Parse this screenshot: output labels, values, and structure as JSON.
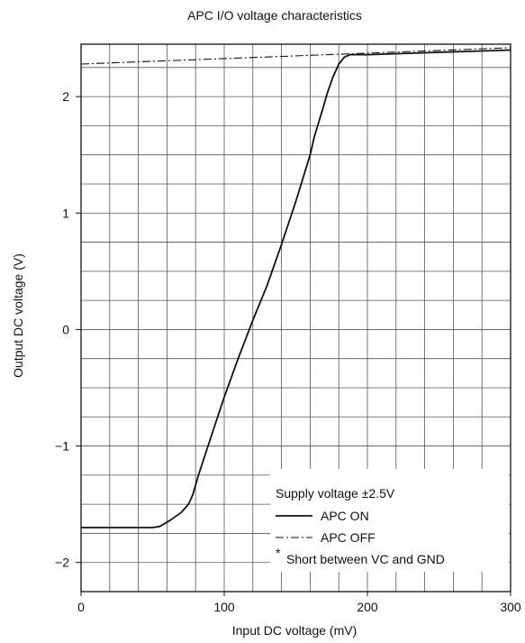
{
  "chart_data": {
    "type": "line",
    "title": "APC I/O voltage characteristics",
    "xlabel": "Input DC voltage (mV)",
    "ylabel": "Output DC voltage (V)",
    "xlim": [
      0,
      300
    ],
    "ylim": [
      -2.25,
      2.45
    ],
    "x_ticks": [
      0,
      100,
      200,
      300
    ],
    "x_tick_labels": [
      "0",
      "100",
      "200",
      "300"
    ],
    "y_ticks": [
      -2,
      -1,
      0,
      1,
      2
    ],
    "y_tick_labels": [
      "−2",
      "−1",
      "0",
      "1",
      "2"
    ],
    "grid": true,
    "legend_position": "bottom-right",
    "legend": {
      "header": "Supply voltage ±2.5V",
      "footnote_mark": "*",
      "footnote": "Short between VC and GND"
    },
    "series": [
      {
        "name": "APC ON",
        "style": "solid",
        "color": "#111111",
        "x": [
          0,
          50,
          55,
          62,
          70,
          75,
          78,
          82,
          90,
          100,
          110,
          120,
          130,
          140,
          150,
          160,
          163,
          168,
          172,
          176,
          180,
          184,
          188,
          192,
          200,
          250,
          300
        ],
        "y": [
          -1.7,
          -1.7,
          -1.69,
          -1.64,
          -1.57,
          -1.5,
          -1.42,
          -1.25,
          -0.95,
          -0.58,
          -0.24,
          0.08,
          0.38,
          0.73,
          1.1,
          1.5,
          1.66,
          1.86,
          2.03,
          2.17,
          2.28,
          2.34,
          2.36,
          2.36,
          2.36,
          2.38,
          2.4
        ]
      },
      {
        "name": "APC OFF",
        "style": "dashdot",
        "color": "#111111",
        "x": [
          0,
          300
        ],
        "y": [
          2.28,
          2.42
        ]
      }
    ]
  }
}
